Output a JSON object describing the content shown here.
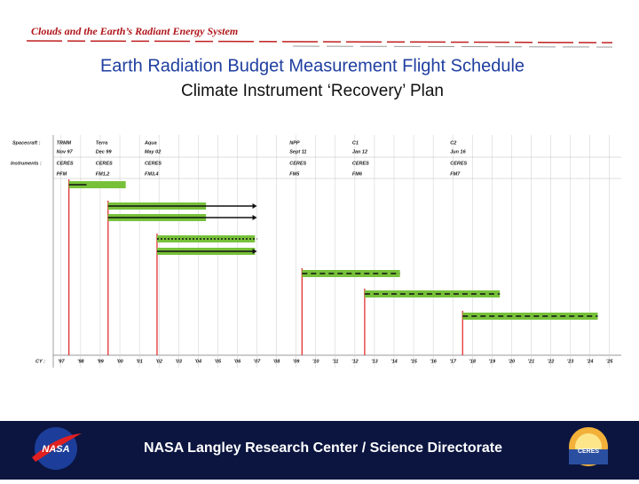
{
  "header": {
    "program": "Clouds and the Earth’s Radiant Energy System",
    "title": "Earth Radiation Budget Measurement Flight Schedule",
    "subtitle": "Climate Instrument ‘Recovery’ Plan"
  },
  "chart_data": {
    "type": "gantt",
    "row_labels": {
      "spacecraft": "Spacecraft :",
      "instruments": "Instruments :",
      "axis": "CY :"
    },
    "bar_color": "#77c13a",
    "launch_color": "#e02020",
    "line_color": "#111111",
    "grid": true,
    "xlim": [
      1996.6,
      2025.6
    ],
    "xticks": [
      {
        "value": 1997,
        "label": "'97"
      },
      {
        "value": 1998,
        "label": "'98"
      },
      {
        "value": 1999,
        "label": "'99"
      },
      {
        "value": 2000,
        "label": "'00"
      },
      {
        "value": 2001,
        "label": "'01"
      },
      {
        "value": 2002,
        "label": "'02"
      },
      {
        "value": 2003,
        "label": "'03"
      },
      {
        "value": 2004,
        "label": "'04"
      },
      {
        "value": 2005,
        "label": "'05"
      },
      {
        "value": 2006,
        "label": "'06"
      },
      {
        "value": 2007,
        "label": "'07"
      },
      {
        "value": 2008,
        "label": "'08"
      },
      {
        "value": 2009,
        "label": "'09"
      },
      {
        "value": 2010,
        "label": "'10"
      },
      {
        "value": 2011,
        "label": "'11"
      },
      {
        "value": 2012,
        "label": "'12"
      },
      {
        "value": 2013,
        "label": "'13"
      },
      {
        "value": 2014,
        "label": "'14"
      },
      {
        "value": 2015,
        "label": "'15"
      },
      {
        "value": 2016,
        "label": "'16"
      },
      {
        "value": 2017,
        "label": "'17"
      },
      {
        "value": 2018,
        "label": "'18"
      },
      {
        "value": 2019,
        "label": "'19"
      },
      {
        "value": 2020,
        "label": "'20"
      },
      {
        "value": 2021,
        "label": "'21"
      },
      {
        "value": 2022,
        "label": "'22"
      },
      {
        "value": 2023,
        "label": "'23"
      },
      {
        "value": 2024,
        "label": "'24"
      },
      {
        "value": 2025,
        "label": "'25"
      }
    ],
    "missions": [
      {
        "spacecraft": "TRMM",
        "date": "Nov 97",
        "instrument": "CERES",
        "models": "PFM",
        "launch": 1997.4,
        "bars": [
          {
            "start": 1997.4,
            "end": 2000.3,
            "line_end": 1998.3,
            "style": "solid",
            "arrow": false
          }
        ]
      },
      {
        "spacecraft": "Terra",
        "date": "Dec 99",
        "instrument": "CERES",
        "models": "FM1,2",
        "launch": 1999.4,
        "bars": [
          {
            "start": 1999.4,
            "end": 2004.4,
            "line_end": 2007.0,
            "style": "solid",
            "arrow": true
          },
          {
            "start": 1999.4,
            "end": 2004.4,
            "line_end": 2007.0,
            "style": "solid",
            "arrow": true
          }
        ]
      },
      {
        "spacecraft": "Aqua",
        "date": "May 02",
        "instrument": "CERES",
        "models": "FM3,4",
        "launch": 2001.9,
        "bars": [
          {
            "start": 2001.9,
            "end": 2006.9,
            "line_end": 2007.0,
            "style": "dotted",
            "arrow": false
          },
          {
            "start": 2001.9,
            "end": 2006.9,
            "line_end": 2007.0,
            "style": "solid",
            "arrow": true
          }
        ]
      },
      {
        "spacecraft": "NPP",
        "date": "Sept 11",
        "instrument": "CERES",
        "models": "FM5",
        "launch": 2009.3,
        "bars": [
          {
            "start": 2009.3,
            "end": 2014.3,
            "line_end": 2014.3,
            "style": "dashed",
            "arrow": false
          }
        ]
      },
      {
        "spacecraft": "C1",
        "date": "Jan 12",
        "instrument": "CERES",
        "models": "FM6",
        "launch": 2012.5,
        "bars": [
          {
            "start": 2012.5,
            "end": 2019.4,
            "line_end": 2019.4,
            "style": "dashed",
            "arrow": false
          }
        ]
      },
      {
        "spacecraft": "C2",
        "date": "Jun 16",
        "instrument": "CERES",
        "models": "FM7",
        "launch": 2017.5,
        "bars": [
          {
            "start": 2017.5,
            "end": 2024.4,
            "line_end": 2024.4,
            "style": "dashed",
            "arrow": false
          }
        ]
      }
    ]
  },
  "footer": {
    "text": "NASA Langley Research Center / Science Directorate",
    "nasa_logo": "NASA",
    "ceres_logo": "CERES"
  }
}
